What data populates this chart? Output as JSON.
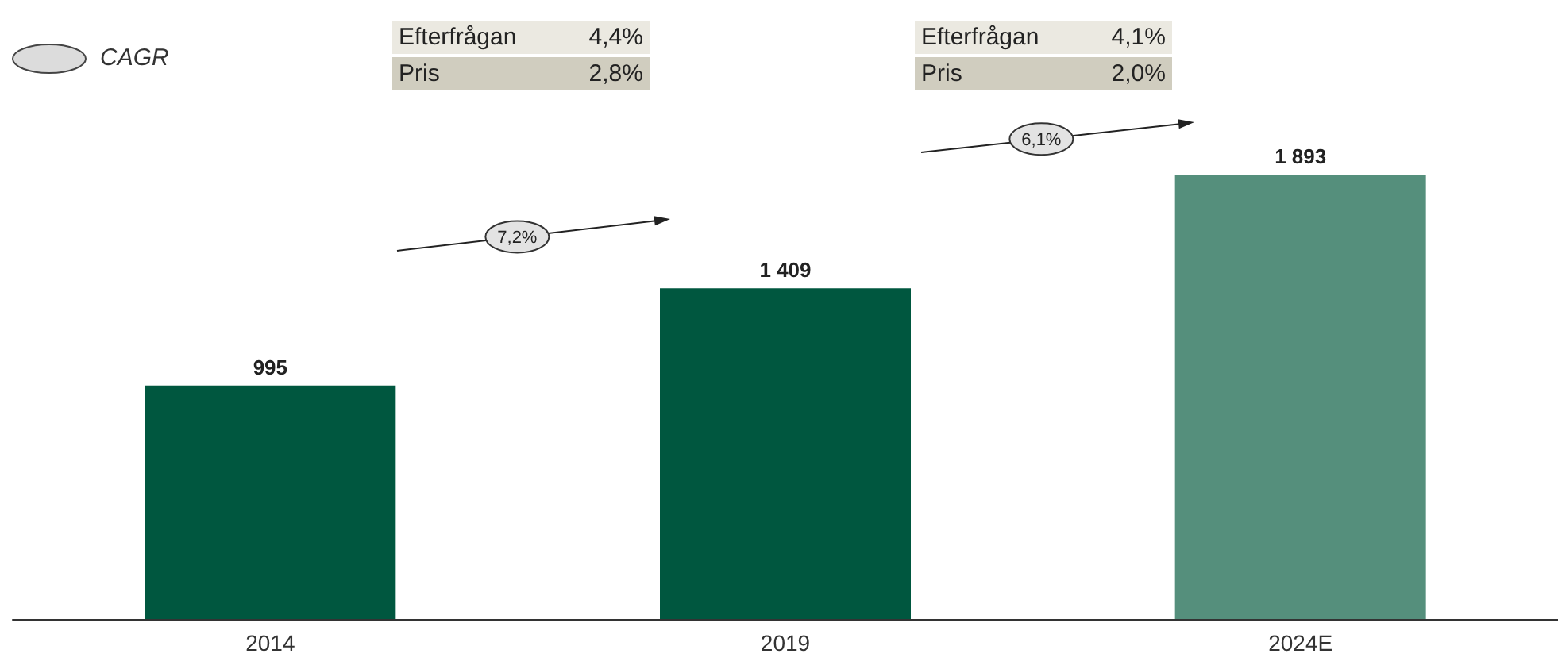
{
  "chart_data": {
    "type": "bar",
    "categories": [
      "2014",
      "2019",
      "2024E"
    ],
    "values": [
      995,
      1409,
      1893
    ],
    "colors": [
      "#00573f",
      "#00573f",
      "#558f7c"
    ],
    "data_labels": true,
    "annotations": [
      "CAGR",
      "Efterfrågan",
      "4,4%",
      "Pris",
      "2,8%",
      "7,2%",
      "Efterfrågan",
      "4,1%",
      "Pris",
      "2,0%",
      "6,1%"
    ]
  }
}
